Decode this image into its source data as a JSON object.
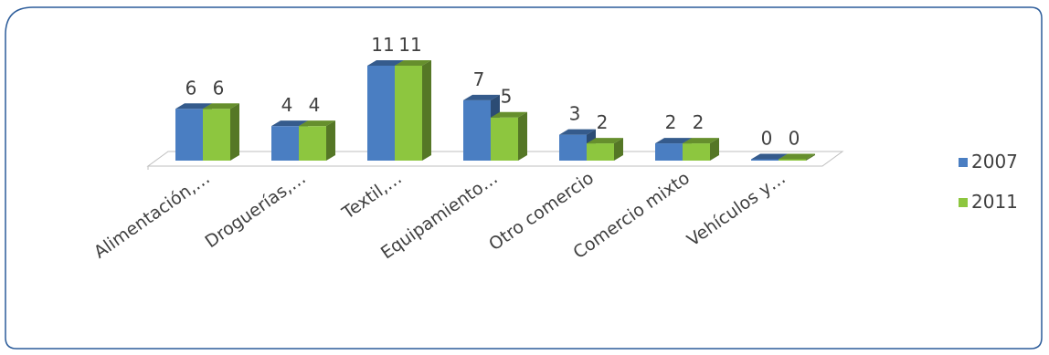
{
  "chart_data": {
    "type": "bar",
    "categories": [
      "Alimentación,…",
      "Droguerías,…",
      "Textil,…",
      "Equipamiento…",
      "Otro comercio",
      "Comercio mixto",
      "Vehículos y…"
    ],
    "series": [
      {
        "name": "2007",
        "values": [
          6,
          4,
          11,
          7,
          3,
          2,
          0
        ],
        "color": "#4A7EC2"
      },
      {
        "name": "2011",
        "values": [
          6,
          4,
          11,
          5,
          2,
          2,
          0
        ],
        "color": "#8DC63F"
      }
    ],
    "title": "",
    "xlabel": "",
    "ylabel": "",
    "ylim": [
      0,
      11
    ],
    "grid": false,
    "legend": "right",
    "style": "3d-clustered-column"
  }
}
